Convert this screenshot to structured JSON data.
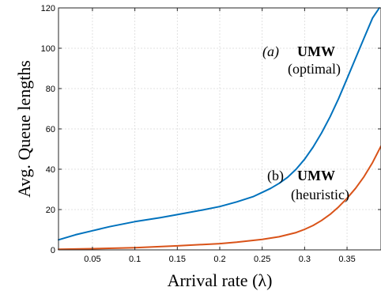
{
  "chart_data": {
    "type": "line",
    "xlabel": "Arrival rate (λ)",
    "ylabel": "Avg. Queue lengths",
    "xlim": [
      0.01,
      0.39
    ],
    "ylim": [
      0,
      120
    ],
    "xticks": [
      0.05,
      0.1,
      0.15,
      0.2,
      0.25,
      0.3,
      0.35
    ],
    "xtick_labels": [
      "0.05",
      "0.1",
      "0.15",
      "0.2",
      "0.25",
      "0.3",
      "0.35"
    ],
    "yticks": [
      0,
      20,
      40,
      60,
      80,
      100,
      120
    ],
    "ytick_labels": [
      "0",
      "20",
      "40",
      "60",
      "80",
      "100",
      "120"
    ],
    "grid": true,
    "series": [
      {
        "name": "(a) UMW (optimal)",
        "color": "#0072BD",
        "x": [
          0.01,
          0.03,
          0.05,
          0.07,
          0.1,
          0.13,
          0.15,
          0.18,
          0.2,
          0.22,
          0.24,
          0.25,
          0.26,
          0.27,
          0.28,
          0.29,
          0.3,
          0.31,
          0.32,
          0.33,
          0.34,
          0.35,
          0.36,
          0.37,
          0.38,
          0.388
        ],
        "y": [
          5,
          7.5,
          9.5,
          11.5,
          14,
          16,
          17.5,
          19.8,
          21.5,
          23.8,
          26.5,
          28.5,
          30.5,
          33,
          36,
          40,
          45,
          51,
          58,
          66,
          75,
          85,
          95,
          105,
          115,
          120
        ]
      },
      {
        "name": "(b) UMW (heuristic)",
        "color": "#D95319",
        "x": [
          0.01,
          0.05,
          0.1,
          0.15,
          0.2,
          0.22,
          0.25,
          0.27,
          0.29,
          0.3,
          0.31,
          0.32,
          0.33,
          0.34,
          0.35,
          0.36,
          0.37,
          0.38,
          0.39
        ],
        "y": [
          0.3,
          0.6,
          1.1,
          2.0,
          3.1,
          3.8,
          5.2,
          6.5,
          8.6,
          10.2,
          12.1,
          14.6,
          17.6,
          21.3,
          25.6,
          30.5,
          36.3,
          43.3,
          51.5
        ]
      }
    ],
    "annotations": [
      {
        "italic": "(a)",
        "bold": "UMW",
        "sub": "(optimal)"
      },
      {
        "italic": "(b)",
        "bold": "UMW",
        "sub": "(heuristic)"
      }
    ]
  }
}
